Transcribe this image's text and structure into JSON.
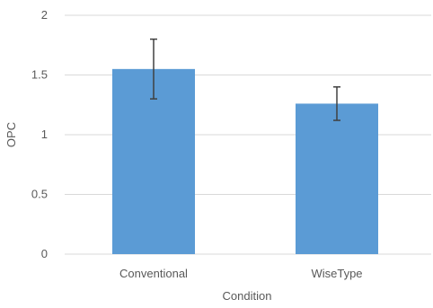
{
  "chart_data": {
    "type": "bar",
    "categories": [
      "Conventional",
      "WiseType"
    ],
    "values": [
      1.55,
      1.26
    ],
    "error_low": [
      1.3,
      1.12
    ],
    "error_high": [
      1.8,
      1.4
    ],
    "xlabel": "Condition",
    "ylabel": "OPC",
    "ylim": [
      0,
      2
    ],
    "yticks": [
      "0",
      "0.5",
      "1",
      "1.5",
      "2"
    ],
    "grid": true,
    "bar_color": "#5b9bd5",
    "gridline_color": "#d9d9d9",
    "text_color": "#595959",
    "error_bar_color": "#404040"
  }
}
